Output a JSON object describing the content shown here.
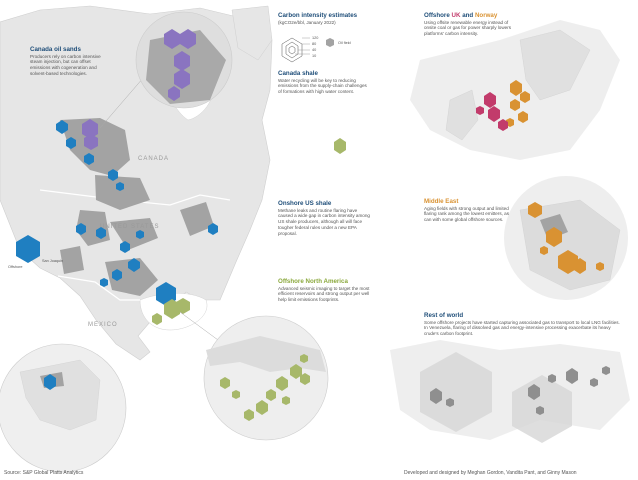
{
  "colors": {
    "oil_sands": "#8a74c0",
    "shale_blue": "#1f7fc1",
    "offshore_na": "#a7b86a",
    "uk": "#c23b6b",
    "norway": "#d99232",
    "middle_east": "#d99232",
    "rest_of_world": "#8f8f8f",
    "land": "#e9e9e9",
    "basin": "#9a9a9a"
  },
  "legend": {
    "title": "Carbon intensity estimates",
    "subtitle": "(kgCO2e/bbl, January 2022)",
    "oil_field_label": "Oil field",
    "scale_values": [
      "120",
      "80",
      "40",
      "10"
    ]
  },
  "sections": {
    "canada_oil_sands": {
      "title": "Canada oil sands",
      "body": "Producers rely on carbon intensive steam injection, but can offset emissions with cogeneration and solvent-based technologies."
    },
    "canada_shale": {
      "title": "Canada shale",
      "body": "Water recycling will be key to reducing emissions from the supply-chain challenges of formations with high water content."
    },
    "onshore_us_shale": {
      "title": "Onshore US shale",
      "body": "Methane leaks and routine flaring have caused a wide gap in carbon intensity among US shale producers, although all will face tougher federal rules under a new EPA proposal."
    },
    "offshore_north_america": {
      "title": "Offshore North America",
      "body": "Advanced seismic imaging to target the most efficient reservoirs and strong output per well help limit emissions footprints."
    },
    "offshore_uk_norway": {
      "title_prefix": "Offshore",
      "title_uk": "UK",
      "title_and": "and",
      "title_norway": "Norway",
      "body": "Using offsite renewable energy instead of onsite coal or gas for power sharply lowers platforms' carbon intensity."
    },
    "middle_east": {
      "title": "Middle East",
      "body": "Aging fields with strong output and limited flaring rank among the lowest emitters, as can with some global offshore sources."
    },
    "rest_of_world": {
      "title": "Rest of world",
      "body": "Some offshore projects have started capturing associated gas to transport to local LNG facilities. In Venezuela, flaring of dissolved gas and energy-intensive processing exacerbate its heavy crude's carbon footprint."
    }
  },
  "map_labels": {
    "canada": "CANADA",
    "united_states": "UNITED STATES",
    "mexico": "MEXICO",
    "san_joaquin": "San Joaquin",
    "offshore": "Offshore"
  },
  "footer": {
    "source": "Source: S&P Global Platts Analytics",
    "credit": "Developed and designed by Meghan Gordon, Vandita Pant, and Ginny Mason"
  }
}
